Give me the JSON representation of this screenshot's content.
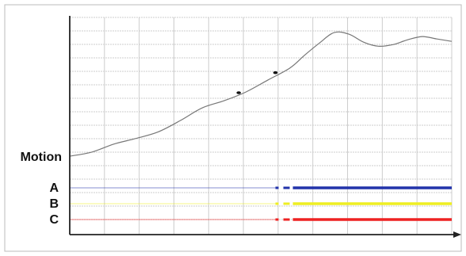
{
  "chart_data": {
    "type": "line",
    "title": "",
    "xlabel": "",
    "ylabel": "",
    "grid": true,
    "motion": {
      "label": "Motion",
      "color": "#777777",
      "points": [
        [
          0,
          0
        ],
        [
          3,
          0.5
        ],
        [
          6,
          1.5
        ],
        [
          9,
          2.2
        ],
        [
          12,
          3.0
        ],
        [
          15,
          4.4
        ],
        [
          18,
          6.0
        ],
        [
          21,
          6.9
        ],
        [
          24,
          8.0
        ],
        [
          27,
          9.5
        ],
        [
          30,
          11.0
        ],
        [
          32,
          12.6
        ],
        [
          34,
          14.1
        ],
        [
          36,
          15.4
        ],
        [
          38,
          15.2
        ],
        [
          40,
          14.2
        ],
        [
          42,
          13.7
        ],
        [
          44,
          13.9
        ],
        [
          46,
          14.5
        ],
        [
          48,
          14.9
        ],
        [
          50,
          14.6
        ],
        [
          52,
          14.3
        ]
      ],
      "markers": [
        [
          23,
          7.9
        ],
        [
          28,
          10.4
        ]
      ]
    },
    "channels": [
      {
        "label": "A",
        "color": "#2233aa",
        "active_from": 28
      },
      {
        "label": "B",
        "color": "#eeee22",
        "active_from": 28
      },
      {
        "label": "C",
        "color": "#ee2222",
        "active_from": 28
      }
    ],
    "x_range": [
      0,
      52
    ],
    "motion_range": [
      0,
      16
    ],
    "n_vertical_grid": 11,
    "n_horizontal_grid": 15
  }
}
